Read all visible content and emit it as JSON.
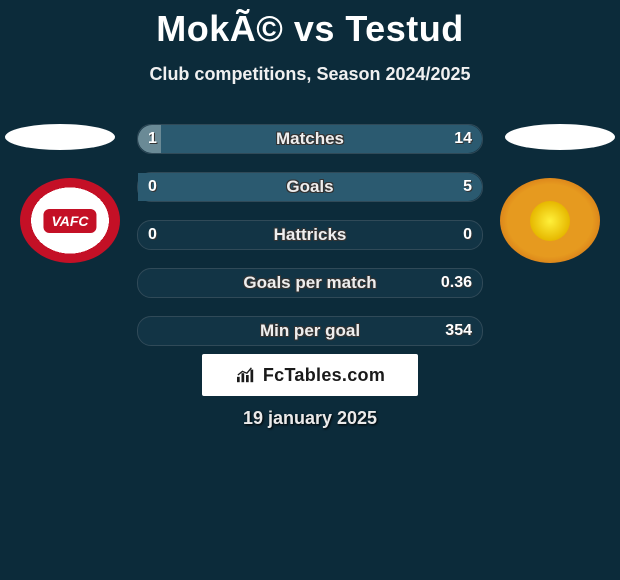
{
  "title": "MokÃ© vs Testud",
  "subtitle": "Club competitions, Season 2024/2025",
  "date": "19 january 2025",
  "brand": "FcTables.com",
  "colors": {
    "background": "#0c2b3a",
    "bar_border": "#304a58",
    "bar_fill_left": "#6a8a96",
    "bar_fill_right": "#2b5a70",
    "text": "#ffffff",
    "club_left_primary": "#c41026",
    "club_left_secondary": "#ffffff",
    "club_right_primary": "#e69a1f",
    "club_right_secondary": "#c65410"
  },
  "bars": [
    {
      "label": "Matches",
      "left": "1",
      "right": "14",
      "left_pct": 6.7,
      "right_pct": 93.3
    },
    {
      "label": "Goals",
      "left": "0",
      "right": "5",
      "left_pct": 0,
      "right_pct": 100
    },
    {
      "label": "Hattricks",
      "left": "0",
      "right": "0",
      "left_pct": 0,
      "right_pct": 0
    },
    {
      "label": "Goals per match",
      "left": "",
      "right": "0.36",
      "left_pct": 0,
      "right_pct": 0
    },
    {
      "label": "Min per goal",
      "left": "",
      "right": "354",
      "left_pct": 0,
      "right_pct": 0
    }
  ]
}
